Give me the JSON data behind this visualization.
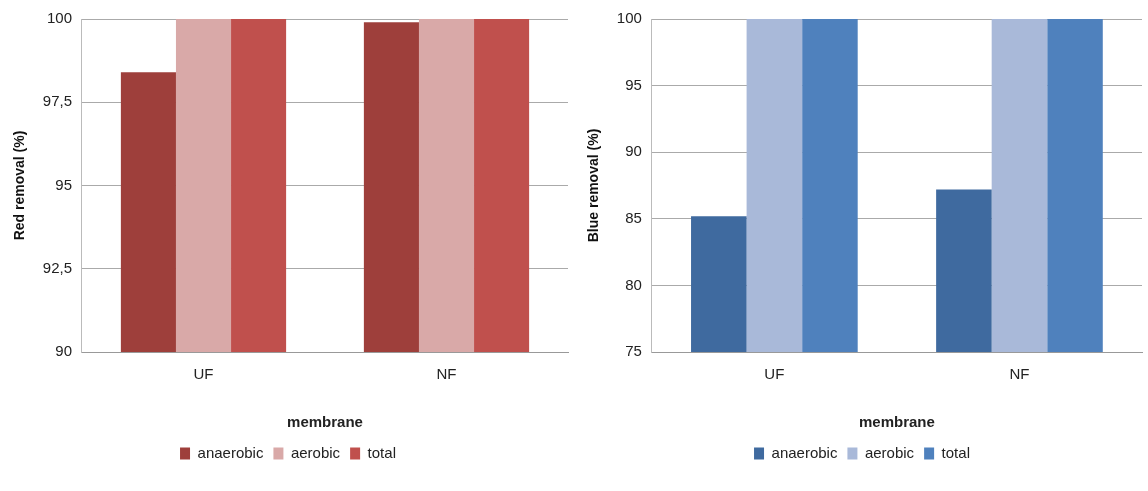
{
  "chart_data": [
    {
      "type": "bar",
      "categories": [
        "UF",
        "NF"
      ],
      "xlabel": "membrane",
      "ylabel": "Red removal (%)",
      "ylim": [
        90,
        100
      ],
      "yticks": [
        90,
        {
          "value": 92.5,
          "label": "92,5"
        },
        95,
        {
          "value": 97.5,
          "label": "97,5"
        },
        100
      ],
      "grid": "y",
      "legend": "bottom",
      "series": [
        {
          "name": "anaerobic",
          "color": "#9e3f3b",
          "values": [
            98.4,
            99.9
          ]
        },
        {
          "name": "aerobic",
          "color": "#d9a9a8",
          "values": [
            100,
            100
          ]
        },
        {
          "name": "total",
          "color": "#c0504d",
          "values": [
            100,
            100
          ]
        }
      ]
    },
    {
      "type": "bar",
      "categories": [
        "UF",
        "NF"
      ],
      "xlabel": "membrane",
      "ylabel": "Blue removal (%)",
      "ylim": [
        75,
        100
      ],
      "yticks": [
        75,
        80,
        85,
        90,
        95,
        100
      ],
      "grid": "y",
      "legend": "bottom",
      "series": [
        {
          "name": "anaerobic",
          "color": "#3f6a9f",
          "values": [
            85.2,
            87.2
          ]
        },
        {
          "name": "aerobic",
          "color": "#a9b9d9",
          "values": [
            100,
            100
          ]
        },
        {
          "name": "total",
          "color": "#4f81bd",
          "values": [
            100,
            100
          ]
        }
      ]
    }
  ]
}
